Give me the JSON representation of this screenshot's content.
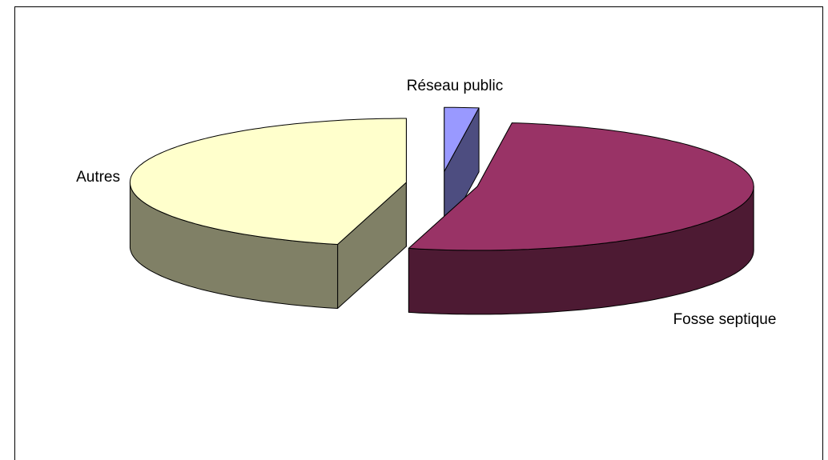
{
  "chart_data": {
    "type": "pie",
    "categories": [
      "Réseau public",
      "Fosse septique",
      "Autres"
    ],
    "values": [
      2,
      52,
      46
    ],
    "colors": [
      "#9999ff",
      "#993366",
      "#ffffcc"
    ]
  }
}
